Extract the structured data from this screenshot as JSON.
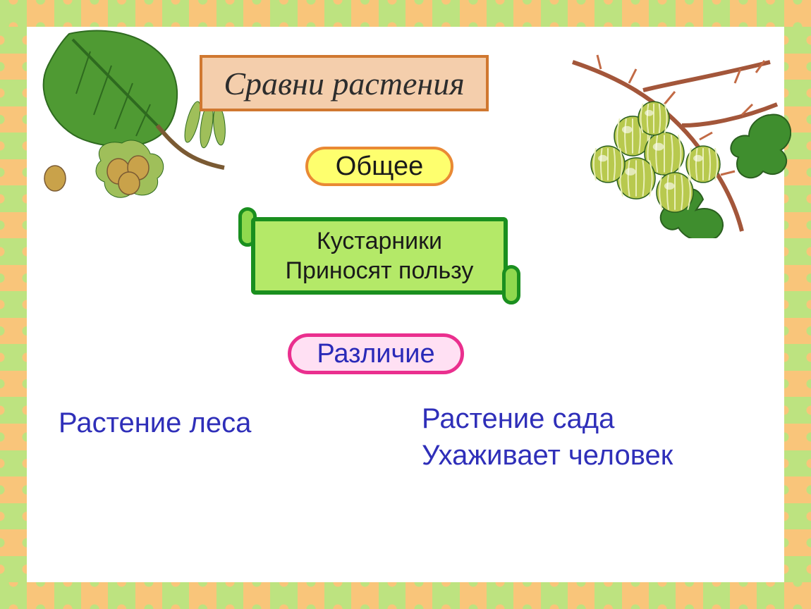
{
  "border": {
    "colors": [
      "#bde380",
      "#f9c57a"
    ],
    "tile_size": 38
  },
  "title": {
    "text": "Сравни растения",
    "fontsize": 46,
    "background_color": "#f4ceac",
    "border_color": "#d07830",
    "text_color": "#2d2d2d"
  },
  "common_label": {
    "text": "Общее",
    "fontsize": 38,
    "background_color": "#feff6e",
    "border_color": "#e98934",
    "text_color": "#1a1a1a"
  },
  "common_content": {
    "line1": "Кустарники",
    "line2": "Приносят пользу",
    "fontsize": 34,
    "background_color": "#b4e968",
    "border_color": "#1a8f1f",
    "roll_fill": "#8fd94e",
    "text_color": "#1a1a1a"
  },
  "difference_label": {
    "text": "Различие",
    "fontsize": 38,
    "background_color": "#ffe0f3",
    "border_color": "#ea2f8e",
    "text_color": "#2a2ab8"
  },
  "diff_left": {
    "text": "Растение леса",
    "fontsize": 40,
    "text_color": "#2f2fb9"
  },
  "diff_right": {
    "line1": "Растение сада",
    "line2": "Ухаживает человек",
    "fontsize": 40,
    "text_color": "#2f2fb9"
  },
  "illustrations": {
    "left": {
      "name": "hazelnut-branch",
      "leaf_fill": "#4f9a33",
      "leaf_dark": "#2e6a1f",
      "nut_fill": "#c9a24a",
      "nut_husk": "#9fbf5a",
      "stem": "#7a5a33"
    },
    "right": {
      "name": "gooseberry-branch",
      "leaf_fill": "#3f8e2e",
      "leaf_dark": "#2a5f1f",
      "berry_fill": "#b8c94e",
      "berry_stripe": "#e9efb8",
      "branch": "#a3563a",
      "thorn": "#c26a45"
    }
  }
}
